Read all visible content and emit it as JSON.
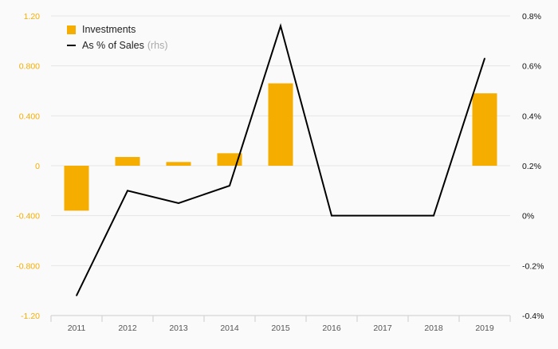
{
  "colors": {
    "bar": "#f5ae00",
    "line": "#000000",
    "grid": "#e6e6e6",
    "left_tick": "#f5ae00",
    "right_tick": "#111111",
    "x_tick": "#555555",
    "background": "#fafafa"
  },
  "legend": {
    "bar_label": "Investments",
    "line_label": "As % of Sales",
    "line_note": "(rhs)",
    "placement": "top-left"
  },
  "chart_data": {
    "type": "bar",
    "categories": [
      "2011",
      "2012",
      "2013",
      "2014",
      "2015",
      "2016",
      "2017",
      "2018",
      "2019"
    ],
    "series": [
      {
        "name": "Investments",
        "type": "bar",
        "axis": "left",
        "values": [
          -0.36,
          0.07,
          0.03,
          0.1,
          0.66,
          0,
          0,
          0,
          0.58
        ]
      },
      {
        "name": "As % of Sales",
        "type": "line",
        "axis": "right",
        "values": [
          -0.32,
          0.1,
          0.05,
          0.12,
          0.76,
          0.0,
          0.0,
          0.0,
          0.63
        ]
      }
    ],
    "y_left": {
      "range": [
        -1.2,
        1.2
      ],
      "ticks": [
        -1.2,
        -0.8,
        -0.4,
        0,
        0.4,
        0.8,
        1.2
      ],
      "tick_labels": [
        "-1.20",
        "-0.800",
        "-0.400",
        "0",
        "0.400",
        "0.800",
        "1.20"
      ]
    },
    "y_right": {
      "range": [
        -0.4,
        0.8
      ],
      "ticks": [
        -0.4,
        -0.2,
        0,
        0.2,
        0.4,
        0.6,
        0.8
      ],
      "tick_labels": [
        "-0.4%",
        "-0.2%",
        "0%",
        "0.2%",
        "0.4%",
        "0.6%",
        "0.8%"
      ]
    },
    "grid": true
  }
}
